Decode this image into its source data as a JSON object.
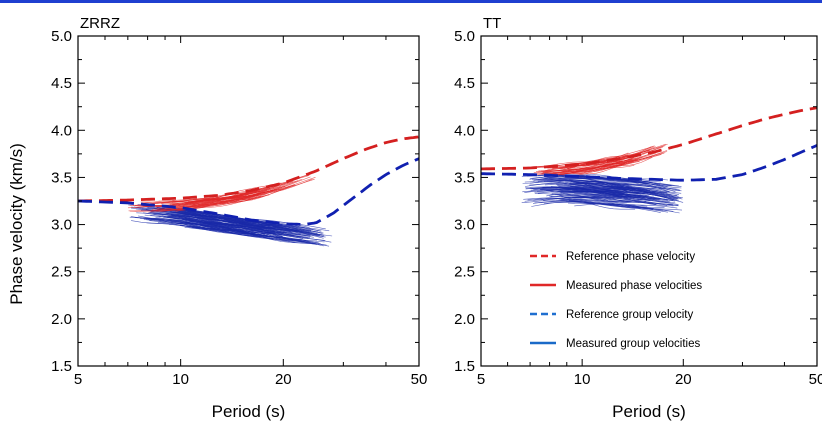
{
  "page": {
    "top_bar_color": "#1f3fd0"
  },
  "figure": {
    "ylabel": "Phase velocity (km/s)",
    "colors": {
      "ref_phase": "#d42020",
      "meas_phase": "#e02828",
      "ref_group": "#1020b0",
      "meas_group": "#1a2aa8",
      "legend_ref_group": "#1f6fd0",
      "legend_meas_group": "#1a6ac8"
    }
  },
  "legend": {
    "placement": "lower-right of right panel",
    "entries": [
      {
        "label": "Reference phase velocity",
        "style": "dashed",
        "color": "#e02828"
      },
      {
        "label": "Measured phase velocities",
        "style": "solid",
        "color": "#e02828"
      },
      {
        "label": "Reference group velocity",
        "style": "dashed",
        "color": "#1f6fd0"
      },
      {
        "label": "Measured group velocities",
        "style": "solid",
        "color": "#1a6ac8"
      }
    ]
  },
  "chart_data": [
    {
      "type": "line",
      "title": "ZRRZ",
      "xlabel": "Period (s)",
      "ylabel": "Phase velocity (km/s)",
      "xscale": "log",
      "xlim": [
        5,
        50
      ],
      "ylim": [
        1.5,
        5.0
      ],
      "xticks": [
        5,
        10,
        20,
        50
      ],
      "xtick_labels": [
        "5",
        "10",
        "20",
        "50"
      ],
      "yticks": [
        1.5,
        2.0,
        2.5,
        3.0,
        3.5,
        4.0,
        4.5,
        5.0
      ],
      "ytick_labels": [
        "1.5",
        "2.0",
        "2.5",
        "3.0",
        "3.5",
        "4.0",
        "4.5",
        "5.0"
      ],
      "grid": false,
      "series": [
        {
          "kind": "ref_phase",
          "style": "dashed",
          "x": [
            5,
            7,
            10,
            13,
            16,
            20,
            25,
            30,
            35,
            40,
            45,
            50
          ],
          "y": [
            3.25,
            3.26,
            3.28,
            3.31,
            3.36,
            3.44,
            3.57,
            3.7,
            3.8,
            3.87,
            3.91,
            3.93
          ]
        },
        {
          "kind": "ref_group",
          "style": "dashed",
          "x": [
            5,
            7,
            10,
            13,
            16,
            20,
            23,
            25,
            28,
            32,
            36,
            40,
            45,
            50
          ],
          "y": [
            3.25,
            3.23,
            3.18,
            3.11,
            3.05,
            3.01,
            3.0,
            3.02,
            3.12,
            3.28,
            3.42,
            3.53,
            3.63,
            3.7
          ]
        }
      ],
      "measured_phase_band": {
        "x_range": [
          7,
          25
        ],
        "center": {
          "x": [
            7,
            10,
            13,
            16,
            20,
            25
          ],
          "y": [
            3.18,
            3.2,
            3.25,
            3.31,
            3.4,
            3.52
          ]
        },
        "spread": 0.05,
        "count": 45
      },
      "measured_group_band": {
        "x_range": [
          7,
          28
        ],
        "center": {
          "x": [
            7,
            10,
            13,
            16,
            20,
            25,
            28
          ],
          "y": [
            3.13,
            3.08,
            3.02,
            2.97,
            2.92,
            2.87,
            2.84
          ]
        },
        "spread": 0.09,
        "count": 110
      }
    },
    {
      "type": "line",
      "title": "TT",
      "xlabel": "Period (s)",
      "xscale": "log",
      "xlim": [
        5,
        50
      ],
      "ylim": [
        1.5,
        5.0
      ],
      "xticks": [
        5,
        10,
        20,
        50
      ],
      "xtick_labels": [
        "5",
        "10",
        "20",
        "50"
      ],
      "yticks": [
        1.5,
        2.0,
        2.5,
        3.0,
        3.5,
        4.0,
        4.5,
        5.0
      ],
      "ytick_labels": [
        "1.5",
        "2.0",
        "2.5",
        "3.0",
        "3.5",
        "4.0",
        "4.5",
        "5.0"
      ],
      "grid": false,
      "series": [
        {
          "kind": "ref_phase",
          "style": "dashed",
          "x": [
            5,
            7,
            10,
            13,
            16,
            20,
            25,
            30,
            35,
            40,
            45,
            50
          ],
          "y": [
            3.59,
            3.6,
            3.64,
            3.7,
            3.76,
            3.85,
            3.96,
            4.05,
            4.12,
            4.17,
            4.21,
            4.24
          ]
        },
        {
          "kind": "ref_group",
          "style": "dashed",
          "x": [
            5,
            7,
            10,
            13,
            16,
            20,
            25,
            30,
            35,
            40,
            45,
            50
          ],
          "y": [
            3.54,
            3.53,
            3.51,
            3.49,
            3.48,
            3.47,
            3.48,
            3.53,
            3.61,
            3.69,
            3.77,
            3.84
          ]
        }
      ],
      "measured_phase_band": {
        "x_range": [
          7,
          18
        ],
        "center": {
          "x": [
            7,
            9,
            11,
            13,
            15,
            18
          ],
          "y": [
            3.56,
            3.58,
            3.62,
            3.67,
            3.73,
            3.82
          ]
        },
        "spread": 0.06,
        "count": 45
      },
      "measured_group_band": {
        "x_range": [
          6.6,
          20
        ],
        "center": {
          "x": [
            6.6,
            8,
            10,
            12,
            15,
            20
          ],
          "y": [
            3.35,
            3.38,
            3.37,
            3.35,
            3.32,
            3.26
          ]
        },
        "spread": 0.15,
        "count": 120
      }
    }
  ]
}
